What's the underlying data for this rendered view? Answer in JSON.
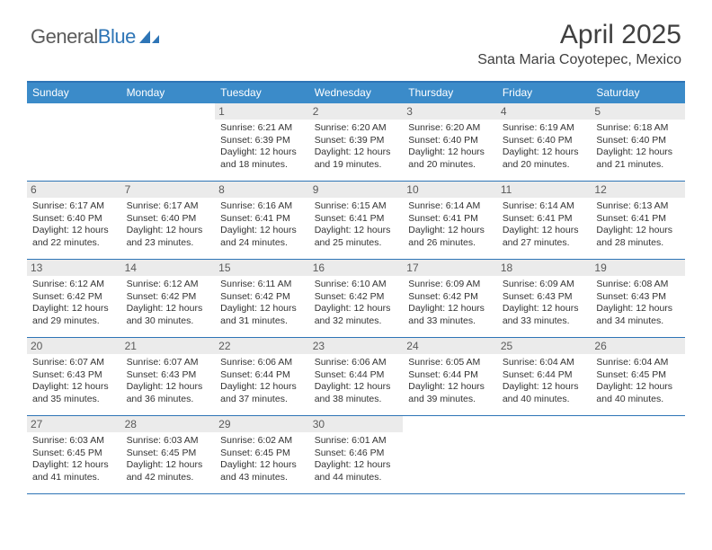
{
  "brand": {
    "part1": "General",
    "part2": "Blue"
  },
  "title": "April 2025",
  "location": "Santa Maria Coyotepec, Mexico",
  "colors": {
    "header_bg": "#3b8bc9",
    "border": "#2e75b6",
    "daynum_bg": "#ebebeb",
    "text": "#333333"
  },
  "day_labels": [
    "Sunday",
    "Monday",
    "Tuesday",
    "Wednesday",
    "Thursday",
    "Friday",
    "Saturday"
  ],
  "weeks": [
    [
      null,
      null,
      {
        "n": "1",
        "sr": "6:21 AM",
        "ss": "6:39 PM",
        "dl": "12 hours and 18 minutes."
      },
      {
        "n": "2",
        "sr": "6:20 AM",
        "ss": "6:39 PM",
        "dl": "12 hours and 19 minutes."
      },
      {
        "n": "3",
        "sr": "6:20 AM",
        "ss": "6:40 PM",
        "dl": "12 hours and 20 minutes."
      },
      {
        "n": "4",
        "sr": "6:19 AM",
        "ss": "6:40 PM",
        "dl": "12 hours and 20 minutes."
      },
      {
        "n": "5",
        "sr": "6:18 AM",
        "ss": "6:40 PM",
        "dl": "12 hours and 21 minutes."
      }
    ],
    [
      {
        "n": "6",
        "sr": "6:17 AM",
        "ss": "6:40 PM",
        "dl": "12 hours and 22 minutes."
      },
      {
        "n": "7",
        "sr": "6:17 AM",
        "ss": "6:40 PM",
        "dl": "12 hours and 23 minutes."
      },
      {
        "n": "8",
        "sr": "6:16 AM",
        "ss": "6:41 PM",
        "dl": "12 hours and 24 minutes."
      },
      {
        "n": "9",
        "sr": "6:15 AM",
        "ss": "6:41 PM",
        "dl": "12 hours and 25 minutes."
      },
      {
        "n": "10",
        "sr": "6:14 AM",
        "ss": "6:41 PM",
        "dl": "12 hours and 26 minutes."
      },
      {
        "n": "11",
        "sr": "6:14 AM",
        "ss": "6:41 PM",
        "dl": "12 hours and 27 minutes."
      },
      {
        "n": "12",
        "sr": "6:13 AM",
        "ss": "6:41 PM",
        "dl": "12 hours and 28 minutes."
      }
    ],
    [
      {
        "n": "13",
        "sr": "6:12 AM",
        "ss": "6:42 PM",
        "dl": "12 hours and 29 minutes."
      },
      {
        "n": "14",
        "sr": "6:12 AM",
        "ss": "6:42 PM",
        "dl": "12 hours and 30 minutes."
      },
      {
        "n": "15",
        "sr": "6:11 AM",
        "ss": "6:42 PM",
        "dl": "12 hours and 31 minutes."
      },
      {
        "n": "16",
        "sr": "6:10 AM",
        "ss": "6:42 PM",
        "dl": "12 hours and 32 minutes."
      },
      {
        "n": "17",
        "sr": "6:09 AM",
        "ss": "6:42 PM",
        "dl": "12 hours and 33 minutes."
      },
      {
        "n": "18",
        "sr": "6:09 AM",
        "ss": "6:43 PM",
        "dl": "12 hours and 33 minutes."
      },
      {
        "n": "19",
        "sr": "6:08 AM",
        "ss": "6:43 PM",
        "dl": "12 hours and 34 minutes."
      }
    ],
    [
      {
        "n": "20",
        "sr": "6:07 AM",
        "ss": "6:43 PM",
        "dl": "12 hours and 35 minutes."
      },
      {
        "n": "21",
        "sr": "6:07 AM",
        "ss": "6:43 PM",
        "dl": "12 hours and 36 minutes."
      },
      {
        "n": "22",
        "sr": "6:06 AM",
        "ss": "6:44 PM",
        "dl": "12 hours and 37 minutes."
      },
      {
        "n": "23",
        "sr": "6:06 AM",
        "ss": "6:44 PM",
        "dl": "12 hours and 38 minutes."
      },
      {
        "n": "24",
        "sr": "6:05 AM",
        "ss": "6:44 PM",
        "dl": "12 hours and 39 minutes."
      },
      {
        "n": "25",
        "sr": "6:04 AM",
        "ss": "6:44 PM",
        "dl": "12 hours and 40 minutes."
      },
      {
        "n": "26",
        "sr": "6:04 AM",
        "ss": "6:45 PM",
        "dl": "12 hours and 40 minutes."
      }
    ],
    [
      {
        "n": "27",
        "sr": "6:03 AM",
        "ss": "6:45 PM",
        "dl": "12 hours and 41 minutes."
      },
      {
        "n": "28",
        "sr": "6:03 AM",
        "ss": "6:45 PM",
        "dl": "12 hours and 42 minutes."
      },
      {
        "n": "29",
        "sr": "6:02 AM",
        "ss": "6:45 PM",
        "dl": "12 hours and 43 minutes."
      },
      {
        "n": "30",
        "sr": "6:01 AM",
        "ss": "6:46 PM",
        "dl": "12 hours and 44 minutes."
      },
      null,
      null,
      null
    ]
  ],
  "labels": {
    "sunrise": "Sunrise:",
    "sunset": "Sunset:",
    "daylight": "Daylight:"
  }
}
